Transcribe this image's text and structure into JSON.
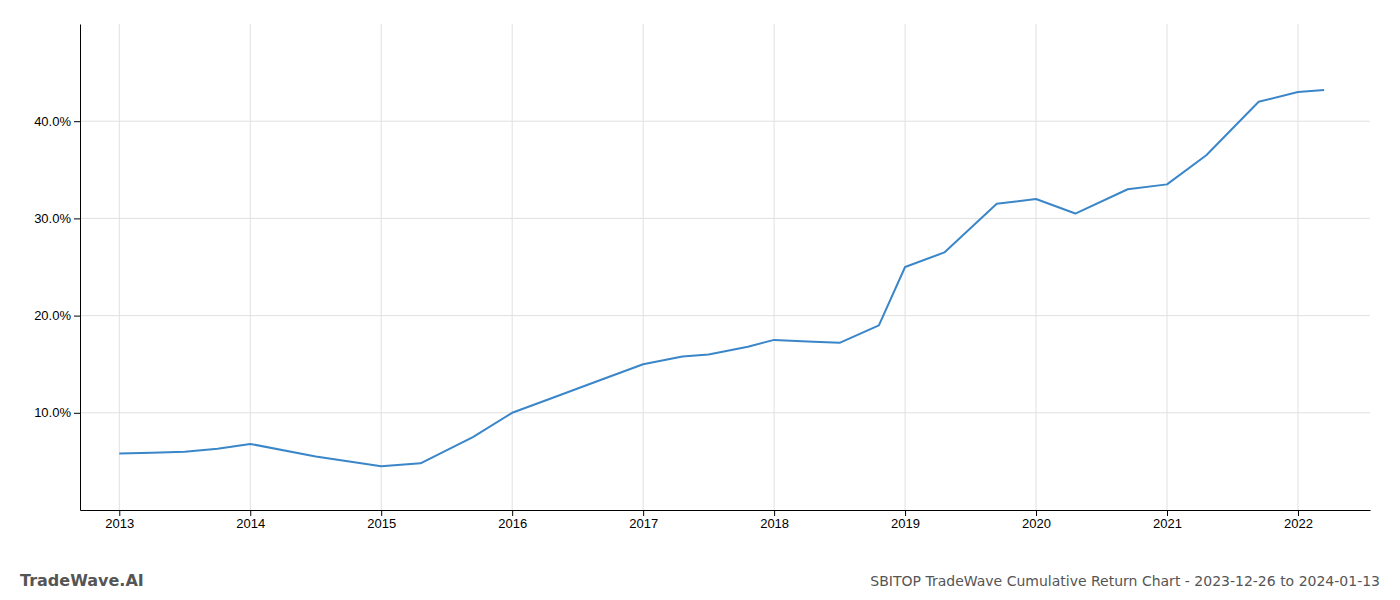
{
  "chart_data": {
    "type": "line",
    "title": "SBITOP TradeWave Cumulative Return Chart - 2023-12-26 to 2024-01-13",
    "annotations": [
      "TradeWave.AI"
    ],
    "x": [
      2013.0,
      2013.25,
      2013.5,
      2013.75,
      2014.0,
      2014.5,
      2015.0,
      2015.3,
      2015.7,
      2016.0,
      2016.3,
      2016.7,
      2017.0,
      2017.3,
      2017.5,
      2017.8,
      2018.0,
      2018.3,
      2018.5,
      2018.8,
      2019.0,
      2019.3,
      2019.7,
      2020.0,
      2020.3,
      2020.7,
      2021.0,
      2021.3,
      2021.7,
      2022.0,
      2022.2
    ],
    "values": [
      5.8,
      5.9,
      6.0,
      6.3,
      6.8,
      5.5,
      4.5,
      4.8,
      7.5,
      10.0,
      11.5,
      13.5,
      15.0,
      15.8,
      16.0,
      16.8,
      17.5,
      17.3,
      17.2,
      19.0,
      25.0,
      26.5,
      31.5,
      32.0,
      30.5,
      33.0,
      33.5,
      36.5,
      42.0,
      43.0,
      43.2
    ],
    "color": "#3a86c8",
    "xlim": [
      2012.7,
      2022.55
    ],
    "ylim": [
      0,
      50
    ],
    "xticks": [
      2013,
      2014,
      2015,
      2016,
      2017,
      2018,
      2019,
      2020,
      2021,
      2022
    ],
    "yticks": [
      {
        "value": 10.0,
        "label": "10.0%"
      },
      {
        "value": 20.0,
        "label": "20.0%"
      },
      {
        "value": 30.0,
        "label": "30.0%"
      },
      {
        "value": 40.0,
        "label": "40.0%"
      }
    ],
    "grid": true
  }
}
